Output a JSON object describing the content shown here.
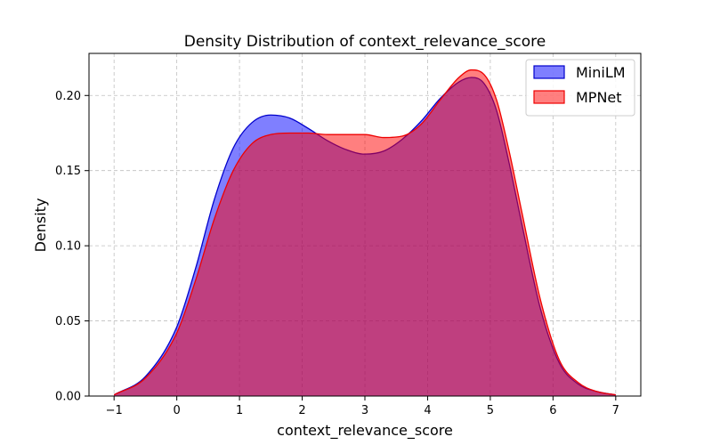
{
  "chart_data": {
    "type": "area",
    "title": "Density Distribution of context_relevance_score",
    "xlabel": "context_relevance_score",
    "ylabel": "Density",
    "xlim": [
      -1.4,
      7.4
    ],
    "ylim": [
      0.0,
      0.228
    ],
    "xticks": [
      -1,
      0,
      1,
      2,
      3,
      4,
      5,
      6,
      7
    ],
    "xtick_labels": [
      "−1",
      "0",
      "1",
      "2",
      "3",
      "4",
      "5",
      "6",
      "7"
    ],
    "yticks": [
      0.0,
      0.05,
      0.1,
      0.15,
      0.2
    ],
    "ytick_labels": [
      "0.00",
      "0.05",
      "0.10",
      "0.15",
      "0.20"
    ],
    "grid": true,
    "legend_position": "top-right",
    "series": [
      {
        "name": "MiniLM",
        "fill_color": "#0000ff",
        "line_color": "#0000cc",
        "x": [
          -1.0,
          -0.5,
          0.0,
          0.3,
          0.6,
          0.9,
          1.2,
          1.5,
          1.8,
          2.1,
          2.4,
          2.7,
          3.0,
          3.3,
          3.6,
          3.9,
          4.2,
          4.5,
          4.7,
          4.9,
          5.1,
          5.3,
          5.5,
          5.8,
          6.1,
          6.4,
          6.7,
          7.0
        ],
        "y": [
          0.0008,
          0.013,
          0.046,
          0.085,
          0.131,
          0.165,
          0.182,
          0.187,
          0.185,
          0.178,
          0.17,
          0.164,
          0.161,
          0.163,
          0.171,
          0.183,
          0.198,
          0.209,
          0.212,
          0.208,
          0.19,
          0.155,
          0.115,
          0.058,
          0.022,
          0.008,
          0.003,
          0.0008
        ]
      },
      {
        "name": "MPNet",
        "fill_color": "#ff0000",
        "line_color": "#ee0000",
        "x": [
          -1.0,
          -0.5,
          0.0,
          0.3,
          0.6,
          0.9,
          1.2,
          1.5,
          1.8,
          2.1,
          2.4,
          2.7,
          3.0,
          3.3,
          3.6,
          3.9,
          4.2,
          4.5,
          4.7,
          4.9,
          5.1,
          5.3,
          5.5,
          5.8,
          6.1,
          6.4,
          6.7,
          7.0
        ],
        "y": [
          0.0008,
          0.012,
          0.042,
          0.077,
          0.118,
          0.15,
          0.168,
          0.174,
          0.175,
          0.175,
          0.174,
          0.174,
          0.174,
          0.172,
          0.173,
          0.181,
          0.197,
          0.212,
          0.217,
          0.214,
          0.197,
          0.163,
          0.123,
          0.064,
          0.024,
          0.009,
          0.003,
          0.0008
        ]
      }
    ]
  }
}
